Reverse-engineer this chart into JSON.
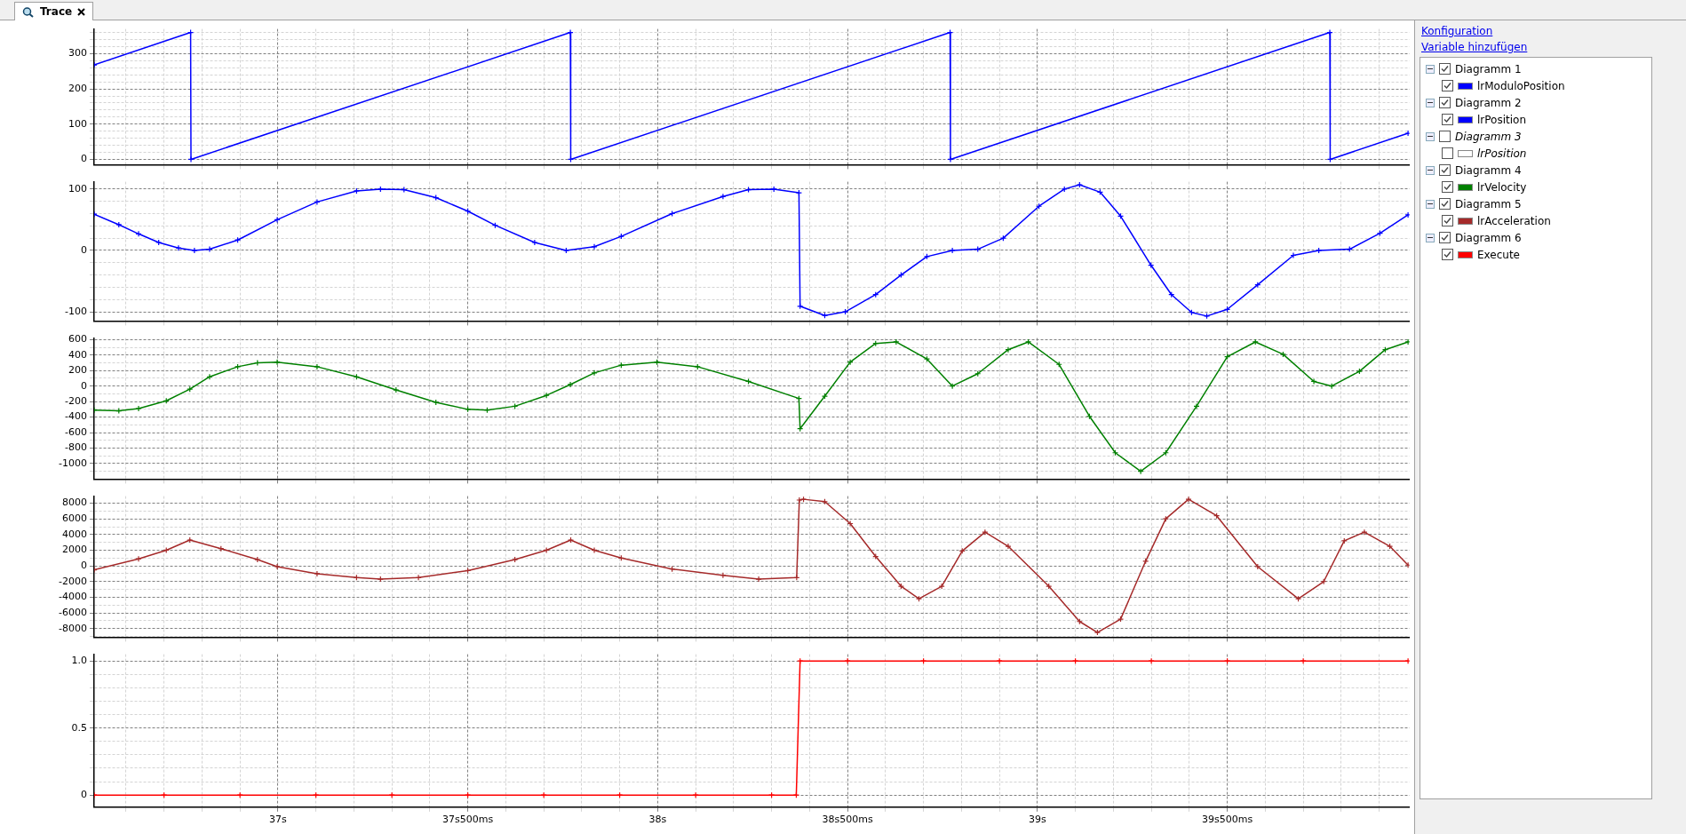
{
  "chart_data": [
    {
      "type": "line",
      "x": [
        36.516,
        36.77,
        36.771,
        37.77,
        37.771,
        38.77,
        38.771,
        39.77,
        39.771,
        39.976
      ],
      "series": [
        {
          "name": "lrModuloPosition",
          "color": "#0000ff",
          "values": [
            268,
            360,
            0,
            360,
            0,
            360,
            0,
            360,
            0,
            74
          ]
        }
      ],
      "xlim": [
        36.516,
        39.98
      ],
      "xticks": [
        {
          "value": 36.6,
          "label": null
        },
        {
          "value": 36.7,
          "label": null
        },
        {
          "value": 36.8,
          "label": null
        },
        {
          "value": 36.9,
          "label": null
        },
        {
          "value": 37,
          "label": null
        },
        {
          "value": 37.1,
          "label": null
        },
        {
          "value": 37.2,
          "label": null
        },
        {
          "value": 37.3,
          "label": null
        },
        {
          "value": 37.4,
          "label": null
        },
        {
          "value": 37.5,
          "label": null
        },
        {
          "value": 37.6,
          "label": null
        },
        {
          "value": 37.7,
          "label": null
        },
        {
          "value": 37.8,
          "label": null
        },
        {
          "value": 37.9,
          "label": null
        },
        {
          "value": 38,
          "label": null
        },
        {
          "value": 38.1,
          "label": null
        },
        {
          "value": 38.2,
          "label": null
        },
        {
          "value": 38.3,
          "label": null
        },
        {
          "value": 38.4,
          "label": null
        },
        {
          "value": 38.5,
          "label": null
        },
        {
          "value": 38.6,
          "label": null
        },
        {
          "value": 38.7,
          "label": null
        },
        {
          "value": 38.8,
          "label": null
        },
        {
          "value": 38.9,
          "label": null
        },
        {
          "value": 39,
          "label": null
        },
        {
          "value": 39.1,
          "label": null
        },
        {
          "value": 39.2,
          "label": null
        },
        {
          "value": 39.3,
          "label": null
        },
        {
          "value": 39.4,
          "label": null
        },
        {
          "value": 39.5,
          "label": null
        },
        {
          "value": 39.6,
          "label": null
        },
        {
          "value": 39.7,
          "label": null
        },
        {
          "value": 39.8,
          "label": null
        },
        {
          "value": 39.9,
          "label": null
        }
      ],
      "ylim": [
        -15,
        370
      ],
      "yticks": [
        0,
        {
          "value": 20,
          "label": null
        },
        {
          "value": 40,
          "label": null
        },
        {
          "value": 60,
          "label": null
        },
        {
          "value": 80,
          "label": null
        },
        100,
        {
          "value": 120,
          "label": null
        },
        {
          "value": 140,
          "label": null
        },
        {
          "value": 160,
          "label": null
        },
        {
          "value": 180,
          "label": null
        },
        200,
        {
          "value": 220,
          "label": null
        },
        {
          "value": 240,
          "label": null
        },
        {
          "value": 260,
          "label": null
        },
        {
          "value": 280,
          "label": null
        },
        300,
        {
          "value": 320,
          "label": null
        },
        {
          "value": 340,
          "label": null
        },
        {
          "value": 360,
          "label": null
        }
      ],
      "grid": true,
      "legend": "right",
      "marker": "cross",
      "line_style": "solid",
      "tick_labels": "y"
    },
    {
      "type": "line",
      "x": [
        36.516,
        36.581,
        36.633,
        36.686,
        36.738,
        36.78,
        36.82,
        36.894,
        36.998,
        37.103,
        37.207,
        37.27,
        37.332,
        37.416,
        37.5,
        37.572,
        37.676,
        37.759,
        37.833,
        37.904,
        38.038,
        38.172,
        38.239,
        38.306,
        38.372,
        38.375,
        38.44,
        38.494,
        38.574,
        38.641,
        38.709,
        38.776,
        38.843,
        38.91,
        39.004,
        39.071,
        39.111,
        39.165,
        39.219,
        39.299,
        39.353,
        39.406,
        39.446,
        39.5,
        39.58,
        39.674,
        39.741,
        39.822,
        39.902,
        39.976
      ],
      "series": [
        {
          "name": "lrPosition",
          "color": "#0000ff",
          "values": [
            59,
            42,
            27,
            13,
            4,
            0,
            2,
            17,
            50,
            79,
            97,
            100,
            99,
            86,
            64,
            41,
            13,
            0,
            6,
            23,
            60,
            88,
            99,
            100,
            94,
            -91,
            -106,
            -100,
            -72,
            -40,
            -10,
            0,
            2,
            20,
            72,
            100,
            107,
            95,
            56,
            -24,
            -72,
            -101,
            -107,
            -96,
            -56,
            -8,
            0,
            2,
            28,
            58
          ]
        }
      ],
      "xlim": [
        36.516,
        39.98
      ],
      "xticks": [
        {
          "value": 36.6,
          "label": null
        },
        {
          "value": 36.7,
          "label": null
        },
        {
          "value": 36.8,
          "label": null
        },
        {
          "value": 36.9,
          "label": null
        },
        {
          "value": 37,
          "label": null
        },
        {
          "value": 37.1,
          "label": null
        },
        {
          "value": 37.2,
          "label": null
        },
        {
          "value": 37.3,
          "label": null
        },
        {
          "value": 37.4,
          "label": null
        },
        {
          "value": 37.5,
          "label": null
        },
        {
          "value": 37.6,
          "label": null
        },
        {
          "value": 37.7,
          "label": null
        },
        {
          "value": 37.8,
          "label": null
        },
        {
          "value": 37.9,
          "label": null
        },
        {
          "value": 38,
          "label": null
        },
        {
          "value": 38.1,
          "label": null
        },
        {
          "value": 38.2,
          "label": null
        },
        {
          "value": 38.3,
          "label": null
        },
        {
          "value": 38.4,
          "label": null
        },
        {
          "value": 38.5,
          "label": null
        },
        {
          "value": 38.6,
          "label": null
        },
        {
          "value": 38.7,
          "label": null
        },
        {
          "value": 38.8,
          "label": null
        },
        {
          "value": 38.9,
          "label": null
        },
        {
          "value": 39,
          "label": null
        },
        {
          "value": 39.1,
          "label": null
        },
        {
          "value": 39.2,
          "label": null
        },
        {
          "value": 39.3,
          "label": null
        },
        {
          "value": 39.4,
          "label": null
        },
        {
          "value": 39.5,
          "label": null
        },
        {
          "value": 39.6,
          "label": null
        },
        {
          "value": 39.7,
          "label": null
        },
        {
          "value": 39.8,
          "label": null
        },
        {
          "value": 39.9,
          "label": null
        }
      ],
      "ylim": [
        -115,
        112
      ],
      "yticks": [
        -100,
        {
          "value": -80,
          "label": null
        },
        {
          "value": -60,
          "label": null
        },
        {
          "value": -40,
          "label": null
        },
        {
          "value": -20,
          "label": null
        },
        0,
        {
          "value": 20,
          "label": null
        },
        {
          "value": 40,
          "label": null
        },
        {
          "value": 60,
          "label": null
        },
        {
          "value": 80,
          "label": null
        },
        100
      ],
      "grid": true,
      "legend": "right",
      "marker": "cross",
      "line_style": "solid",
      "tick_labels": "y"
    },
    {
      "type": "line",
      "x": [
        36.516,
        36.581,
        36.633,
        36.706,
        36.768,
        36.82,
        36.894,
        36.946,
        36.998,
        37.103,
        37.207,
        37.311,
        37.416,
        37.5,
        37.551,
        37.624,
        37.707,
        37.77,
        37.833,
        37.904,
        37.998,
        38.105,
        38.239,
        38.372,
        38.375,
        38.44,
        38.507,
        38.574,
        38.628,
        38.709,
        38.776,
        38.843,
        38.923,
        38.976,
        39.057,
        39.137,
        39.205,
        39.272,
        39.338,
        39.419,
        39.5,
        39.574,
        39.647,
        39.728,
        39.775,
        39.848,
        39.916,
        39.976
      ],
      "series": [
        {
          "name": "lrVelocity",
          "color": "#008000",
          "values": [
            -310,
            -320,
            -290,
            -190,
            -40,
            120,
            250,
            300,
            310,
            250,
            120,
            -50,
            -210,
            -300,
            -310,
            -260,
            -120,
            20,
            170,
            270,
            310,
            250,
            60,
            -160,
            -550,
            -130,
            310,
            550,
            570,
            350,
            0,
            160,
            470,
            570,
            280,
            -390,
            -860,
            -1100,
            -860,
            -260,
            380,
            570,
            410,
            60,
            0,
            190,
            470,
            570
          ]
        }
      ],
      "xlim": [
        36.516,
        39.98
      ],
      "xticks": [
        {
          "value": 36.6,
          "label": null
        },
        {
          "value": 36.7,
          "label": null
        },
        {
          "value": 36.8,
          "label": null
        },
        {
          "value": 36.9,
          "label": null
        },
        {
          "value": 37,
          "label": null
        },
        {
          "value": 37.1,
          "label": null
        },
        {
          "value": 37.2,
          "label": null
        },
        {
          "value": 37.3,
          "label": null
        },
        {
          "value": 37.4,
          "label": null
        },
        {
          "value": 37.5,
          "label": null
        },
        {
          "value": 37.6,
          "label": null
        },
        {
          "value": 37.7,
          "label": null
        },
        {
          "value": 37.8,
          "label": null
        },
        {
          "value": 37.9,
          "label": null
        },
        {
          "value": 38,
          "label": null
        },
        {
          "value": 38.1,
          "label": null
        },
        {
          "value": 38.2,
          "label": null
        },
        {
          "value": 38.3,
          "label": null
        },
        {
          "value": 38.4,
          "label": null
        },
        {
          "value": 38.5,
          "label": null
        },
        {
          "value": 38.6,
          "label": null
        },
        {
          "value": 38.7,
          "label": null
        },
        {
          "value": 38.8,
          "label": null
        },
        {
          "value": 38.9,
          "label": null
        },
        {
          "value": 39,
          "label": null
        },
        {
          "value": 39.1,
          "label": null
        },
        {
          "value": 39.2,
          "label": null
        },
        {
          "value": 39.3,
          "label": null
        },
        {
          "value": 39.4,
          "label": null
        },
        {
          "value": 39.5,
          "label": null
        },
        {
          "value": 39.6,
          "label": null
        },
        {
          "value": 39.7,
          "label": null
        },
        {
          "value": 39.8,
          "label": null
        },
        {
          "value": 39.9,
          "label": null
        }
      ],
      "ylim": [
        -1200,
        620
      ],
      "yticks": [
        {
          "value": -1100,
          "label": null
        },
        -1000,
        {
          "value": -900,
          "label": null
        },
        -800,
        {
          "value": -700,
          "label": null
        },
        -600,
        {
          "value": -500,
          "label": null
        },
        -400,
        {
          "value": -300,
          "label": null
        },
        -200,
        {
          "value": -100,
          "label": null
        },
        0,
        {
          "value": 100,
          "label": null
        },
        200,
        {
          "value": 300,
          "label": null
        },
        400,
        {
          "value": 500,
          "label": null
        },
        600
      ],
      "grid": true,
      "legend": "right",
      "marker": "cross",
      "line_style": "solid",
      "tick_labels": "y"
    },
    {
      "type": "line",
      "x": [
        36.516,
        36.633,
        36.706,
        36.768,
        36.85,
        36.946,
        36.998,
        37.103,
        37.207,
        37.27,
        37.37,
        37.5,
        37.624,
        37.707,
        37.771,
        37.833,
        37.904,
        38.038,
        38.172,
        38.266,
        38.366,
        38.373,
        38.384,
        38.44,
        38.507,
        38.574,
        38.641,
        38.688,
        38.748,
        38.802,
        38.862,
        38.923,
        39.03,
        39.111,
        39.158,
        39.219,
        39.285,
        39.338,
        39.398,
        39.472,
        39.58,
        39.687,
        39.754,
        39.808,
        39.861,
        39.928,
        39.976
      ],
      "series": [
        {
          "name": "lrAcceleration",
          "color": "#a52a2a",
          "values": [
            -500,
            900,
            2000,
            3300,
            2200,
            800,
            -100,
            -1000,
            -1500,
            -1700,
            -1500,
            -600,
            800,
            2000,
            3300,
            2000,
            1000,
            -400,
            -1200,
            -1700,
            -1500,
            8400,
            8500,
            8200,
            5400,
            1200,
            -2600,
            -4200,
            -2600,
            1900,
            4300,
            2500,
            -2600,
            -7100,
            -8500,
            -6800,
            600,
            6000,
            8500,
            6400,
            -100,
            -4200,
            -2000,
            3200,
            4300,
            2500,
            100
          ]
        }
      ],
      "xlim": [
        36.516,
        39.98
      ],
      "xticks": [
        {
          "value": 36.6,
          "label": null
        },
        {
          "value": 36.7,
          "label": null
        },
        {
          "value": 36.8,
          "label": null
        },
        {
          "value": 36.9,
          "label": null
        },
        {
          "value": 37,
          "label": null
        },
        {
          "value": 37.1,
          "label": null
        },
        {
          "value": 37.2,
          "label": null
        },
        {
          "value": 37.3,
          "label": null
        },
        {
          "value": 37.4,
          "label": null
        },
        {
          "value": 37.5,
          "label": null
        },
        {
          "value": 37.6,
          "label": null
        },
        {
          "value": 37.7,
          "label": null
        },
        {
          "value": 37.8,
          "label": null
        },
        {
          "value": 37.9,
          "label": null
        },
        {
          "value": 38,
          "label": null
        },
        {
          "value": 38.1,
          "label": null
        },
        {
          "value": 38.2,
          "label": null
        },
        {
          "value": 38.3,
          "label": null
        },
        {
          "value": 38.4,
          "label": null
        },
        {
          "value": 38.5,
          "label": null
        },
        {
          "value": 38.6,
          "label": null
        },
        {
          "value": 38.7,
          "label": null
        },
        {
          "value": 38.8,
          "label": null
        },
        {
          "value": 38.9,
          "label": null
        },
        {
          "value": 39,
          "label": null
        },
        {
          "value": 39.1,
          "label": null
        },
        {
          "value": 39.2,
          "label": null
        },
        {
          "value": 39.3,
          "label": null
        },
        {
          "value": 39.4,
          "label": null
        },
        {
          "value": 39.5,
          "label": null
        },
        {
          "value": 39.6,
          "label": null
        },
        {
          "value": 39.7,
          "label": null
        },
        {
          "value": 39.8,
          "label": null
        },
        {
          "value": 39.9,
          "label": null
        }
      ],
      "ylim": [
        -9100,
        8900
      ],
      "yticks": [
        {
          "value": -9000,
          "label": null
        },
        -8000,
        {
          "value": -7000,
          "label": null
        },
        -6000,
        {
          "value": -5000,
          "label": null
        },
        -4000,
        {
          "value": -3000,
          "label": null
        },
        -2000,
        {
          "value": -1000,
          "label": null
        },
        0,
        {
          "value": 1000,
          "label": null
        },
        2000,
        {
          "value": 3000,
          "label": null
        },
        4000,
        {
          "value": 5000,
          "label": null
        },
        6000,
        {
          "value": 7000,
          "label": null
        },
        8000
      ],
      "grid": true,
      "legend": "right",
      "marker": "cross",
      "line_style": "solid",
      "tick_labels": "y"
    },
    {
      "type": "line",
      "x": [
        36.516,
        36.7,
        36.9,
        37.1,
        37.3,
        37.5,
        37.7,
        37.9,
        38.1,
        38.3,
        38.365,
        38.375,
        38.5,
        38.7,
        38.9,
        39.1,
        39.3,
        39.5,
        39.7,
        39.976
      ],
      "series": [
        {
          "name": "Execute",
          "color": "#ff0000",
          "values": [
            0,
            0,
            0,
            0,
            0,
            0,
            0,
            0,
            0,
            0,
            0,
            1,
            1,
            1,
            1,
            1,
            1,
            1,
            1,
            1
          ]
        }
      ],
      "xlim": [
        36.516,
        39.98
      ],
      "xticks": [
        {
          "value": 36.6,
          "label": null
        },
        {
          "value": 36.7,
          "label": null
        },
        {
          "value": 36.8,
          "label": null
        },
        {
          "value": 36.9,
          "label": null
        },
        {
          "value": 37,
          "label": "37s"
        },
        {
          "value": 37.1,
          "label": null
        },
        {
          "value": 37.2,
          "label": null
        },
        {
          "value": 37.3,
          "label": null
        },
        {
          "value": 37.4,
          "label": null
        },
        {
          "value": 37.5,
          "label": "37s500ms"
        },
        {
          "value": 37.6,
          "label": null
        },
        {
          "value": 37.7,
          "label": null
        },
        {
          "value": 37.8,
          "label": null
        },
        {
          "value": 37.9,
          "label": null
        },
        {
          "value": 38,
          "label": "38s"
        },
        {
          "value": 38.1,
          "label": null
        },
        {
          "value": 38.2,
          "label": null
        },
        {
          "value": 38.3,
          "label": null
        },
        {
          "value": 38.4,
          "label": null
        },
        {
          "value": 38.5,
          "label": "38s500ms"
        },
        {
          "value": 38.6,
          "label": null
        },
        {
          "value": 38.7,
          "label": null
        },
        {
          "value": 38.8,
          "label": null
        },
        {
          "value": 38.9,
          "label": null
        },
        {
          "value": 39,
          "label": "39s"
        },
        {
          "value": 39.1,
          "label": null
        },
        {
          "value": 39.2,
          "label": null
        },
        {
          "value": 39.3,
          "label": null
        },
        {
          "value": 39.4,
          "label": null
        },
        {
          "value": 39.5,
          "label": "39s500ms"
        },
        {
          "value": 39.6,
          "label": null
        },
        {
          "value": 39.7,
          "label": null
        },
        {
          "value": 39.8,
          "label": null
        },
        {
          "value": 39.9,
          "label": null
        }
      ],
      "ylim": [
        -0.09,
        1.05
      ],
      "yticks": [
        0,
        {
          "value": 0.1,
          "label": null
        },
        {
          "value": 0.2,
          "label": null
        },
        {
          "value": 0.3,
          "label": null
        },
        {
          "value": 0.4,
          "label": null
        },
        0.5,
        {
          "value": 0.6,
          "label": null
        },
        {
          "value": 0.7,
          "label": null
        },
        {
          "value": 0.8,
          "label": null
        },
        {
          "value": 0.9,
          "label": null
        },
        {
          "value": 1,
          "label": "1.0"
        }
      ],
      "grid": true,
      "legend": "right",
      "marker": "cross",
      "line_style": "solid"
    },
    {
      "type": "other",
      "annotations": [
        "Trace",
        "Konfiguration",
        "Variable hinzufügen",
        "Diagramm 1",
        "Diagramm 2",
        "Diagramm 3",
        "lrPosition",
        "Diagramm 4",
        "Diagramm 5",
        "Diagramm 6"
      ]
    }
  ]
}
